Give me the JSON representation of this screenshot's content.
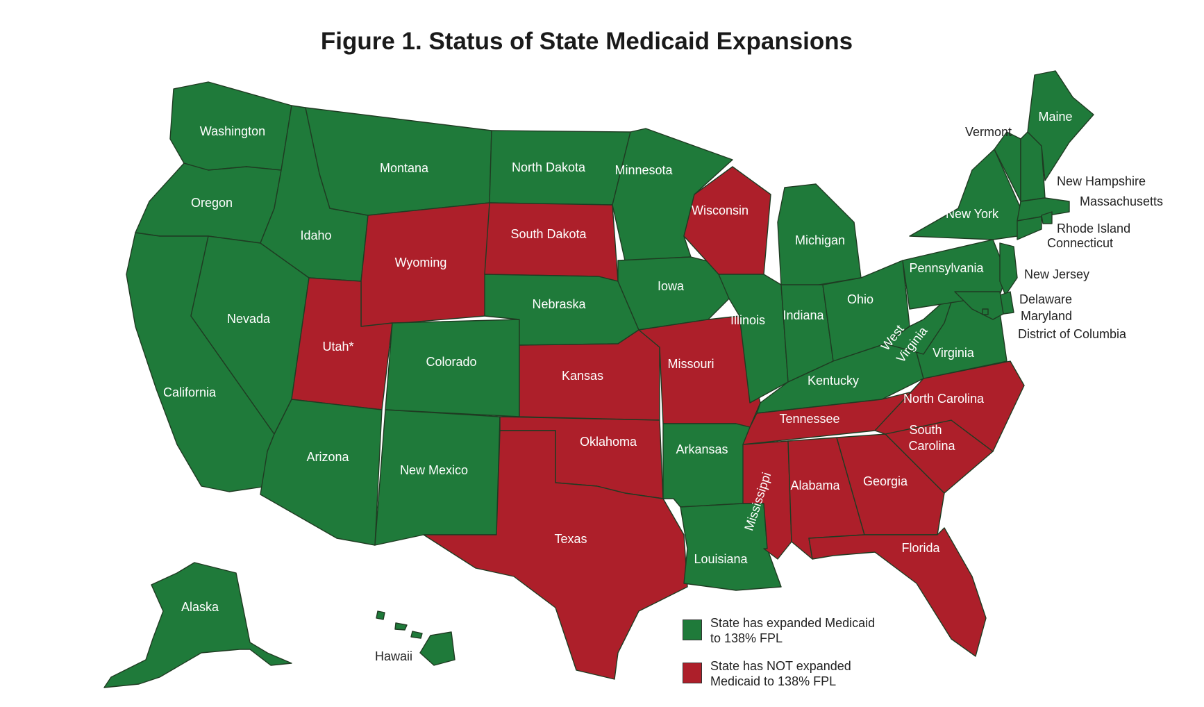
{
  "title": "Figure 1. Status of State Medicaid Expansions",
  "colors": {
    "expanded": "#1f7a3a",
    "not_expanded": "#ad1f2a"
  },
  "legend": [
    {
      "key": "expanded",
      "line1": "State has expanded Medicaid",
      "line2": "to 138% FPL"
    },
    {
      "key": "not_expanded",
      "line1": "State has NOT expanded",
      "line2": "Medicaid to 138% FPL"
    }
  ],
  "states": [
    {
      "name": "Washington",
      "status": "expanded"
    },
    {
      "name": "Oregon",
      "status": "expanded"
    },
    {
      "name": "California",
      "status": "expanded"
    },
    {
      "name": "Nevada",
      "status": "expanded"
    },
    {
      "name": "Idaho",
      "status": "expanded"
    },
    {
      "name": "Montana",
      "status": "expanded"
    },
    {
      "name": "Wyoming",
      "status": "not_expanded"
    },
    {
      "name": "Utah*",
      "status": "not_expanded"
    },
    {
      "name": "Arizona",
      "status": "expanded"
    },
    {
      "name": "Colorado",
      "status": "expanded"
    },
    {
      "name": "New Mexico",
      "status": "expanded"
    },
    {
      "name": "North Dakota",
      "status": "expanded"
    },
    {
      "name": "South Dakota",
      "status": "not_expanded"
    },
    {
      "name": "Nebraska",
      "status": "expanded"
    },
    {
      "name": "Kansas",
      "status": "not_expanded"
    },
    {
      "name": "Oklahoma",
      "status": "not_expanded"
    },
    {
      "name": "Texas",
      "status": "not_expanded"
    },
    {
      "name": "Minnesota",
      "status": "expanded"
    },
    {
      "name": "Iowa",
      "status": "expanded"
    },
    {
      "name": "Missouri",
      "status": "not_expanded"
    },
    {
      "name": "Arkansas",
      "status": "expanded"
    },
    {
      "name": "Louisiana",
      "status": "expanded"
    },
    {
      "name": "Wisconsin",
      "status": "not_expanded"
    },
    {
      "name": "Illinois",
      "status": "expanded"
    },
    {
      "name": "Michigan",
      "status": "expanded"
    },
    {
      "name": "Indiana",
      "status": "expanded"
    },
    {
      "name": "Ohio",
      "status": "expanded"
    },
    {
      "name": "Kentucky",
      "status": "expanded"
    },
    {
      "name": "Tennessee",
      "status": "not_expanded"
    },
    {
      "name": "Mississippi",
      "status": "not_expanded"
    },
    {
      "name": "Alabama",
      "status": "not_expanded"
    },
    {
      "name": "Georgia",
      "status": "not_expanded"
    },
    {
      "name": "Florida",
      "status": "not_expanded"
    },
    {
      "name": "South Carolina",
      "status": "not_expanded"
    },
    {
      "name": "North Carolina",
      "status": "not_expanded"
    },
    {
      "name": "Virginia",
      "status": "expanded"
    },
    {
      "name": "West Virginia",
      "status": "expanded"
    },
    {
      "name": "Pennsylvania",
      "status": "expanded"
    },
    {
      "name": "New York",
      "status": "expanded"
    },
    {
      "name": "Vermont",
      "status": "expanded"
    },
    {
      "name": "New Hampshire",
      "status": "expanded"
    },
    {
      "name": "Maine",
      "status": "expanded"
    },
    {
      "name": "Massachusetts",
      "status": "expanded"
    },
    {
      "name": "Rhode Island",
      "status": "expanded"
    },
    {
      "name": "Connecticut",
      "status": "expanded"
    },
    {
      "name": "New Jersey",
      "status": "expanded"
    },
    {
      "name": "Delaware",
      "status": "expanded"
    },
    {
      "name": "Maryland",
      "status": "expanded"
    },
    {
      "name": "District of Columbia",
      "status": "expanded"
    },
    {
      "name": "Alaska",
      "status": "expanded"
    },
    {
      "name": "Hawaii",
      "status": "expanded"
    }
  ]
}
